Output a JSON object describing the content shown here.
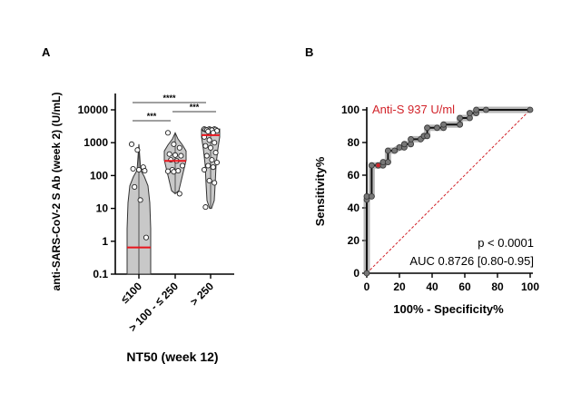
{
  "panels": {
    "a": "A",
    "b": "B"
  },
  "chart_data": [
    {
      "type": "violin",
      "panel": "A",
      "ylabel": "anti-SARS-CoV-2 S Ab (week 2) (U/mL)",
      "xlabel": "NT50 (week 12)",
      "yscale": "log",
      "ylim": [
        0.1,
        10000
      ],
      "yticks": [
        "0.1",
        "1",
        "10",
        "100",
        "1000",
        "10000"
      ],
      "ytick_values": [
        0.1,
        1,
        10,
        100,
        1000,
        10000
      ],
      "categories": [
        "≤100",
        "> 100 - ≤ 250",
        "> 250"
      ],
      "groups": [
        {
          "min": 0.1,
          "max": 900,
          "median": 0.65,
          "points": [
            900,
            600,
            180,
            160,
            150,
            140,
            45,
            18,
            1.3
          ]
        },
        {
          "min": 28,
          "max": 2000,
          "median": 280,
          "points": [
            2000,
            900,
            700,
            450,
            420,
            400,
            300,
            280,
            200,
            150,
            140,
            135,
            130,
            28
          ]
        },
        {
          "min": 10,
          "max": 2600,
          "median": 1700,
          "points": [
            2600,
            2600,
            2600,
            2500,
            2500,
            2500,
            2400,
            2400,
            2300,
            2200,
            2000,
            1500,
            1200,
            1000,
            800,
            700,
            500,
            400,
            300,
            250,
            200,
            180,
            150,
            70,
            60,
            11
          ]
        }
      ],
      "median_color": "#e8141c",
      "fill_color": "#c8c8c8",
      "significance": [
        {
          "from": 0,
          "to": 2,
          "label": "****"
        },
        {
          "from": 1,
          "to": 2,
          "label": "***"
        },
        {
          "from": 0,
          "to": 1,
          "label": "***"
        }
      ]
    },
    {
      "type": "line",
      "panel": "B",
      "xlabel": "100% - Specificity%",
      "ylabel": "Sensitivity%",
      "xlim": [
        0,
        100
      ],
      "ylim": [
        0,
        100
      ],
      "xticks": [
        "0",
        "20",
        "40",
        "60",
        "80",
        "100"
      ],
      "yticks": [
        "0",
        "20",
        "40",
        "60",
        "80",
        "100"
      ],
      "tick_values": [
        0,
        20,
        40,
        60,
        80,
        100
      ],
      "roc": [
        [
          0,
          0
        ],
        [
          0,
          45
        ],
        [
          0,
          47
        ],
        [
          3,
          47
        ],
        [
          3,
          66
        ],
        [
          7,
          66
        ],
        [
          10,
          66
        ],
        [
          10,
          68
        ],
        [
          13,
          68
        ],
        [
          13,
          75
        ],
        [
          17,
          75
        ],
        [
          20,
          77
        ],
        [
          23,
          77
        ],
        [
          23,
          79
        ],
        [
          27,
          79
        ],
        [
          27,
          82
        ],
        [
          33,
          82
        ],
        [
          35,
          84
        ],
        [
          37,
          84
        ],
        [
          37,
          89
        ],
        [
          43,
          89
        ],
        [
          47,
          89
        ],
        [
          47,
          91
        ],
        [
          57,
          91
        ],
        [
          57,
          95
        ],
        [
          63,
          95
        ],
        [
          63,
          98
        ],
        [
          67,
          98
        ],
        [
          67,
          100
        ],
        [
          73,
          100
        ],
        [
          100,
          100
        ]
      ],
      "cutoff_label": "Anti-S 937 U/ml",
      "cutoff_point": [
        7,
        66
      ],
      "cutoff_color": "#d2232a",
      "reference_line_color": "#d2232a",
      "annotations": [
        "p < 0.0001",
        "AUC 0.8726 [0.80-0.95]"
      ]
    }
  ]
}
